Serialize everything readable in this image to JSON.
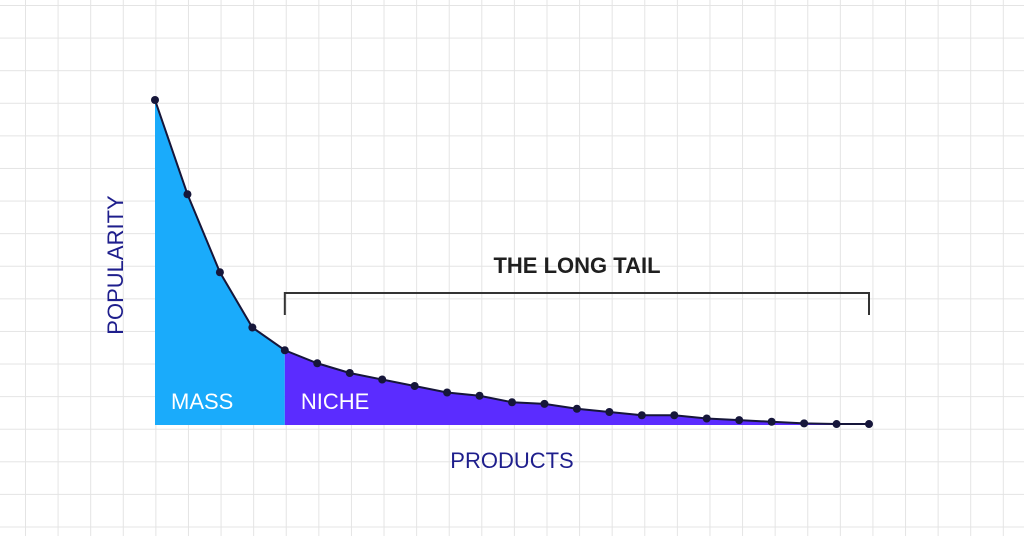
{
  "chart_data": {
    "type": "area",
    "series": [
      {
        "name": "MASS",
        "color": "#1aabfb",
        "values": [
          100,
          71,
          47,
          30,
          23
        ]
      },
      {
        "name": "NICHE",
        "color": "#5b2cff",
        "values": [
          19,
          16,
          14,
          12,
          10,
          9,
          7,
          6.5,
          5,
          4,
          3,
          3,
          2,
          1.5,
          1,
          0.5,
          0.3,
          0.3
        ]
      }
    ],
    "annotation": "THE LONG TAIL",
    "x_label": "PRODUCTS",
    "y_label": "POPULARITY",
    "ylim": [
      0,
      100
    ],
    "line_color": "#16163a"
  }
}
